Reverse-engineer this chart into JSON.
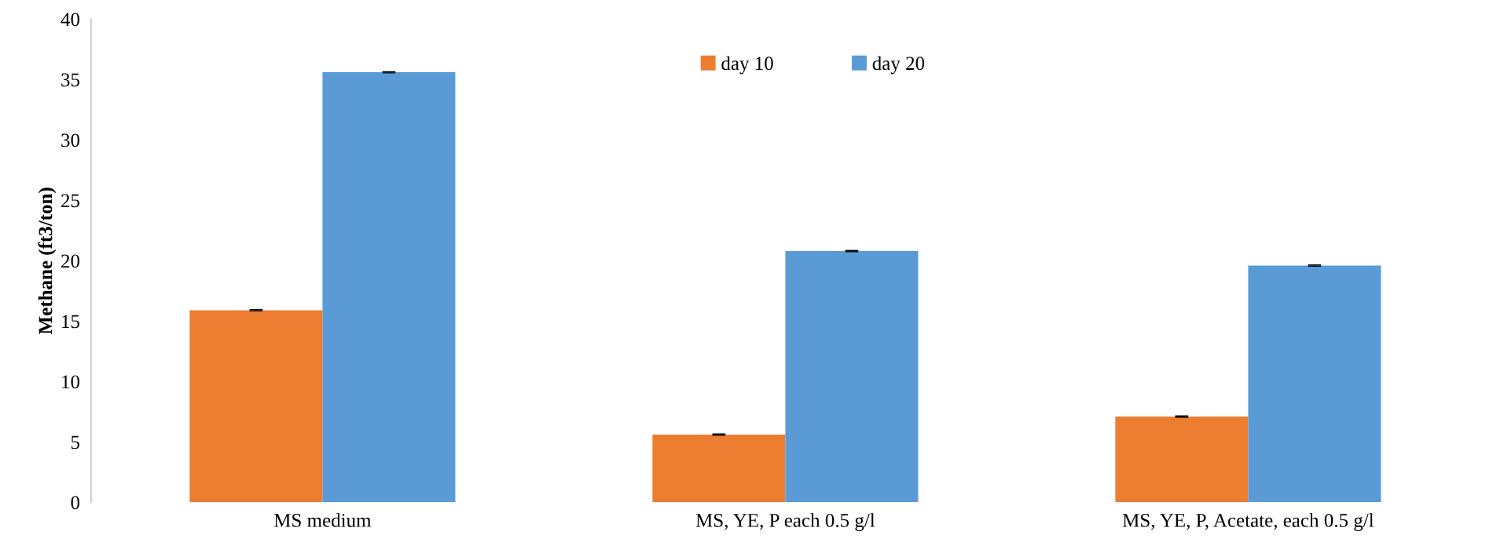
{
  "chart_data": {
    "type": "bar",
    "ylabel": "Methane (ft3/ton)",
    "categories": [
      "MS medium",
      "MS, YE, P each 0.5 g/l",
      "MS, YE, P, Acetate, each 0.5 g/l"
    ],
    "series": [
      {
        "name": "day 10",
        "color": "#ed7d31",
        "values": [
          15.9,
          5.6,
          7.1
        ],
        "errors": [
          0.05,
          0.05,
          0.05
        ]
      },
      {
        "name": "day 20",
        "color": "#5b9bd5",
        "values": [
          35.6,
          20.8,
          19.6
        ],
        "errors": [
          0.05,
          0.05,
          0.05
        ]
      }
    ],
    "ylim": [
      0,
      40
    ],
    "yticks": [
      0,
      5,
      10,
      15,
      20,
      25,
      30,
      35,
      40
    ],
    "grid": false,
    "legend": "top"
  }
}
